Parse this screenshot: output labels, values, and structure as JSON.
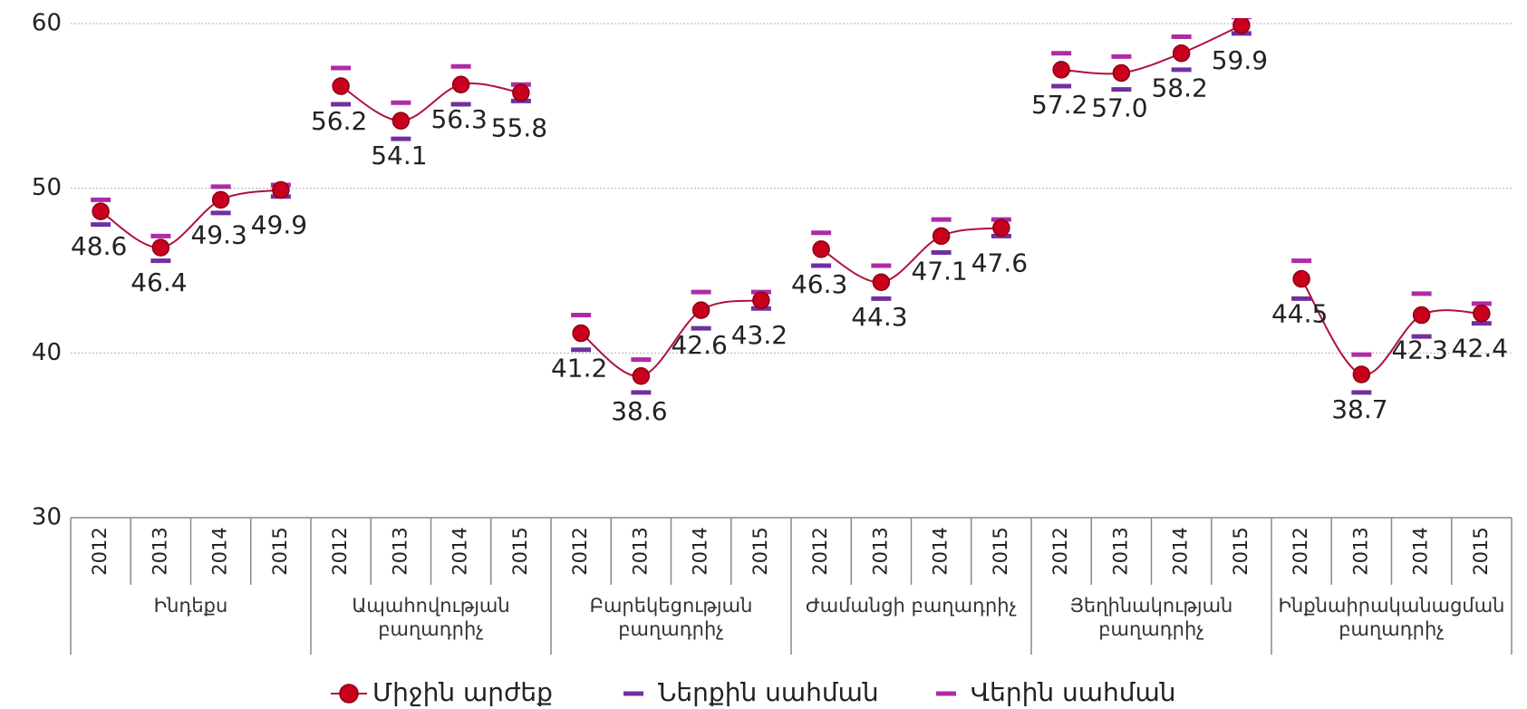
{
  "chart_data": {
    "type": "line",
    "categories": [
      {
        "name": "Ինդեքս",
        "years": [
          "2012",
          "2013",
          "2014",
          "2015"
        ]
      },
      {
        "name": "Ապահովության բաղադրիչ",
        "years": [
          "2012",
          "2013",
          "2014",
          "2015"
        ]
      },
      {
        "name": "Բարեկեցության բաղադրիչ",
        "years": [
          "2012",
          "2013",
          "2014",
          "2015"
        ]
      },
      {
        "name": "Ժամանցի բաղադրիչ",
        "years": [
          "2012",
          "2013",
          "2014",
          "2015"
        ]
      },
      {
        "name": "Յեղինակության բաղադրիչ",
        "years": [
          "2012",
          "2013",
          "2014",
          "2015"
        ]
      },
      {
        "name": "Ինքնաիրականացման բաղադրիչ",
        "years": [
          "2012",
          "2013",
          "2014",
          "2015"
        ]
      }
    ],
    "series": [
      {
        "name": "Միջին արժեք",
        "color": "#c8001e",
        "line_color": "#b0103c",
        "values": [
          [
            48.6,
            46.4,
            49.3,
            49.9
          ],
          [
            56.2,
            54.1,
            56.3,
            55.8
          ],
          [
            41.2,
            38.6,
            42.6,
            43.2
          ],
          [
            46.3,
            44.3,
            47.1,
            47.6
          ],
          [
            57.2,
            57.0,
            58.2,
            59.9
          ],
          [
            44.5,
            38.7,
            42.3,
            42.4
          ]
        ],
        "value_labels": [
          [
            "48.6",
            "46.4",
            "49.3",
            "49.9"
          ],
          [
            "56.2",
            "54.1",
            "56.3",
            "55.8"
          ],
          [
            "41.2",
            "38.6",
            "42.6",
            "43.2"
          ],
          [
            "46.3",
            "44.3",
            "47.1",
            "47.6"
          ],
          [
            "57.2",
            "57.0",
            "58.2",
            "59.9"
          ],
          [
            "44.5",
            "38.7",
            "42.3",
            "42.4"
          ]
        ]
      },
      {
        "name": "Ներքին սահման",
        "color": "#7030a0",
        "values": [
          [
            47.8,
            45.6,
            48.5,
            49.5
          ],
          [
            55.1,
            53.0,
            55.1,
            55.3
          ],
          [
            40.2,
            37.6,
            41.5,
            42.7
          ],
          [
            45.3,
            43.3,
            46.1,
            47.1
          ],
          [
            56.2,
            56.0,
            57.2,
            59.4
          ],
          [
            43.3,
            37.6,
            41.0,
            41.8
          ]
        ]
      },
      {
        "name": "Վերին սահման",
        "color": "#b02aa8",
        "values": [
          [
            49.3,
            47.1,
            50.1,
            50.2
          ],
          [
            57.3,
            55.2,
            57.4,
            56.3
          ],
          [
            42.3,
            39.6,
            43.7,
            43.7
          ],
          [
            47.3,
            45.3,
            48.1,
            48.1
          ],
          [
            58.2,
            58.0,
            59.2,
            60.4
          ],
          [
            45.6,
            39.9,
            43.6,
            43.0
          ]
        ]
      }
    ],
    "ylim": [
      30,
      60
    ],
    "yticks": [
      30,
      40,
      50,
      60
    ],
    "grid": true,
    "legend": "bottom"
  }
}
